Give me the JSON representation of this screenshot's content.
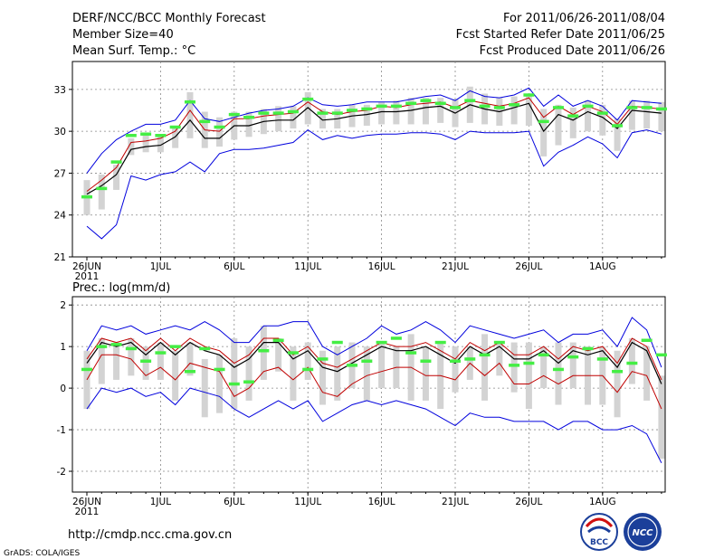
{
  "header": {
    "title": "DERF/NCC/BCC Monthly Forecast",
    "member_size": "Member Size=40",
    "variable": "Mean Surf. Temp.: °C",
    "for_range": "For 2011/06/26-2011/08/04",
    "started": "Fcst Started Refer Date 2011/06/25",
    "produced": "Fcst Produced Date 2011/06/26"
  },
  "footer": {
    "url": "http://cmdp.ncc.cma.gov.cn",
    "grads": "GrADS: COLA/IGES",
    "logo_bcc": "BCC",
    "logo_ncc": "NCC"
  },
  "colors": {
    "max_min": "#0000dd",
    "upper_quartile": "#c00000",
    "median": "#000000",
    "box": "#d3d3d3",
    "mean_marker": "#44ee44",
    "grid": "#888888"
  },
  "chart_data": [
    {
      "type": "line",
      "title": "Mean Surf. Temp.: °C",
      "x_labels": [
        "26JUN",
        "1JUL",
        "6JUL",
        "11JUL",
        "16JUL",
        "21JUL",
        "26JUL",
        "1AUG"
      ],
      "x_year": "2011",
      "ylim": [
        21,
        35
      ],
      "yticks": [
        21,
        24,
        27,
        30,
        33
      ],
      "grid": true,
      "days": 40,
      "series": [
        {
          "name": "max",
          "values": [
            27.0,
            28.4,
            29.4,
            30.0,
            30.5,
            30.5,
            30.8,
            32.2,
            30.9,
            30.7,
            31.0,
            31.3,
            31.5,
            31.6,
            31.8,
            32.4,
            31.9,
            31.8,
            31.9,
            32.1,
            32.1,
            32.1,
            32.3,
            32.5,
            32.6,
            32.2,
            32.9,
            32.5,
            32.4,
            32.6,
            33.1,
            31.8,
            32.6,
            31.8,
            32.2,
            31.8,
            30.8,
            32.2,
            32.1,
            32.0
          ]
        },
        {
          "name": "upper",
          "values": [
            25.7,
            26.5,
            27.4,
            29.2,
            29.3,
            29.5,
            30.0,
            31.5,
            30.1,
            30.0,
            30.9,
            30.9,
            31.1,
            31.2,
            31.3,
            32.1,
            31.4,
            31.2,
            31.4,
            31.5,
            31.8,
            31.7,
            31.9,
            32.0,
            32.1,
            31.7,
            32.2,
            32.0,
            31.8,
            32.0,
            32.4,
            31.0,
            31.8,
            31.2,
            31.8,
            31.4,
            30.5,
            31.8,
            31.7,
            31.6
          ]
        },
        {
          "name": "median",
          "values": [
            25.5,
            26.1,
            26.9,
            28.7,
            28.9,
            29.0,
            29.6,
            30.8,
            29.5,
            29.5,
            30.4,
            30.4,
            30.7,
            30.8,
            30.8,
            31.7,
            30.8,
            30.9,
            31.1,
            31.2,
            31.4,
            31.4,
            31.5,
            31.7,
            31.8,
            31.3,
            31.9,
            31.6,
            31.4,
            31.7,
            32.0,
            30.0,
            31.2,
            30.8,
            31.4,
            31.0,
            30.2,
            31.5,
            31.4,
            31.3
          ]
        },
        {
          "name": "min",
          "values": [
            23.2,
            22.3,
            23.3,
            26.8,
            26.5,
            26.9,
            27.1,
            27.8,
            27.1,
            28.4,
            28.7,
            28.7,
            28.8,
            29.0,
            29.2,
            30.1,
            29.4,
            29.7,
            29.5,
            29.7,
            29.8,
            29.8,
            29.9,
            29.9,
            29.8,
            29.4,
            30.0,
            29.9,
            29.9,
            29.9,
            30.0,
            27.5,
            28.5,
            29.0,
            29.6,
            29.1,
            28.1,
            29.9,
            30.1,
            29.8
          ]
        },
        {
          "name": "box_low",
          "values": [
            24.0,
            24.4,
            25.8,
            28.3,
            28.5,
            28.5,
            28.8,
            29.5,
            28.8,
            28.9,
            29.4,
            29.6,
            29.8,
            30.0,
            30.2,
            30.5,
            30.2,
            30.2,
            30.3,
            30.4,
            30.5,
            30.5,
            30.5,
            30.5,
            30.6,
            30.3,
            30.6,
            30.5,
            30.4,
            30.5,
            30.4,
            28.2,
            29.0,
            29.5,
            30.0,
            29.7,
            28.6,
            30.1,
            30.2,
            30.0
          ]
        },
        {
          "name": "box_high",
          "values": [
            26.5,
            26.9,
            27.6,
            29.5,
            29.8,
            29.8,
            30.4,
            32.8,
            31.4,
            31.0,
            31.4,
            31.4,
            31.6,
            31.8,
            31.8,
            32.8,
            31.6,
            31.6,
            31.9,
            31.9,
            32.1,
            32.2,
            32.4,
            32.4,
            32.4,
            32.3,
            33.2,
            32.7,
            32.4,
            32.5,
            32.7,
            31.6,
            31.9,
            31.7,
            32.2,
            31.9,
            30.9,
            32.2,
            32.2,
            32.1
          ]
        },
        {
          "name": "mean",
          "values": [
            25.3,
            25.9,
            27.8,
            29.7,
            29.8,
            29.7,
            30.3,
            32.1,
            30.7,
            30.3,
            31.2,
            31.0,
            31.3,
            31.3,
            31.4,
            32.3,
            31.3,
            31.3,
            31.5,
            31.6,
            31.8,
            31.8,
            32.0,
            32.2,
            32.0,
            31.7,
            32.2,
            31.8,
            31.7,
            31.9,
            32.6,
            30.7,
            31.7,
            31.1,
            31.8,
            31.3,
            30.4,
            31.7,
            31.7,
            31.6
          ]
        }
      ]
    },
    {
      "type": "line",
      "title": "Prec.: log(mm/d)",
      "x_labels": [
        "26JUN",
        "1JUL",
        "6JUL",
        "11JUL",
        "16JUL",
        "21JUL",
        "26JUL",
        "1AUG"
      ],
      "x_year": "2011",
      "ylim": [
        -2.5,
        2.2
      ],
      "yticks": [
        -2,
        -1,
        0,
        1,
        2
      ],
      "grid": true,
      "days": 40,
      "series": [
        {
          "name": "max",
          "values": [
            0.9,
            1.5,
            1.4,
            1.5,
            1.3,
            1.4,
            1.5,
            1.4,
            1.6,
            1.4,
            1.1,
            1.1,
            1.5,
            1.5,
            1.6,
            1.6,
            1.0,
            0.8,
            1.0,
            1.2,
            1.5,
            1.3,
            1.4,
            1.6,
            1.4,
            1.1,
            1.5,
            1.4,
            1.3,
            1.2,
            1.3,
            1.4,
            1.1,
            1.3,
            1.3,
            1.4,
            1.0,
            1.7,
            1.4,
            0.5
          ]
        },
        {
          "name": "upper",
          "values": [
            0.7,
            1.2,
            1.1,
            1.2,
            0.9,
            1.2,
            0.9,
            1.2,
            1.0,
            0.9,
            0.6,
            0.8,
            1.2,
            1.2,
            0.8,
            1.0,
            0.6,
            0.5,
            0.7,
            0.9,
            1.1,
            1.0,
            1.0,
            1.1,
            0.9,
            0.7,
            1.1,
            0.9,
            1.1,
            0.8,
            0.8,
            1.0,
            0.7,
            1.0,
            0.9,
            1.0,
            0.6,
            1.2,
            1.0,
            0.2
          ]
        },
        {
          "name": "median",
          "values": [
            0.6,
            1.1,
            1.0,
            1.1,
            0.8,
            1.1,
            0.8,
            1.1,
            0.9,
            0.8,
            0.5,
            0.7,
            1.1,
            1.1,
            0.7,
            0.9,
            0.5,
            0.4,
            0.6,
            0.8,
            1.0,
            0.9,
            0.9,
            1.0,
            0.8,
            0.6,
            1.0,
            0.8,
            1.0,
            0.7,
            0.7,
            0.9,
            0.6,
            0.9,
            0.8,
            0.9,
            0.5,
            1.1,
            0.9,
            0.1
          ]
        },
        {
          "name": "mid_low",
          "values": [
            0.2,
            0.8,
            0.8,
            0.7,
            0.3,
            0.5,
            0.2,
            0.6,
            0.5,
            0.4,
            -0.2,
            0.0,
            0.4,
            0.5,
            0.2,
            0.5,
            -0.1,
            -0.2,
            0.1,
            0.3,
            0.4,
            0.5,
            0.5,
            0.3,
            0.3,
            0.2,
            0.6,
            0.3,
            0.6,
            0.1,
            0.1,
            0.3,
            0.1,
            0.3,
            0.3,
            0.3,
            -0.1,
            0.4,
            0.3,
            -0.5
          ]
        },
        {
          "name": "min",
          "values": [
            -0.5,
            0.0,
            -0.1,
            0.0,
            -0.2,
            -0.1,
            -0.4,
            0.0,
            -0.1,
            -0.2,
            -0.5,
            -0.7,
            -0.5,
            -0.3,
            -0.5,
            -0.3,
            -0.8,
            -0.6,
            -0.4,
            -0.3,
            -0.4,
            -0.3,
            -0.4,
            -0.5,
            -0.7,
            -0.9,
            -0.6,
            -0.7,
            -0.7,
            -0.8,
            -0.8,
            -0.8,
            -1.0,
            -0.8,
            -0.8,
            -1.0,
            -1.0,
            -0.9,
            -1.1,
            -1.8
          ]
        },
        {
          "name": "box_low",
          "values": [
            -0.5,
            0.1,
            0.2,
            0.3,
            0.2,
            0.2,
            -0.3,
            0.3,
            -0.7,
            -0.6,
            -0.5,
            -0.3,
            0.2,
            0.4,
            -0.3,
            0.2,
            -0.4,
            -0.3,
            0.0,
            -0.3,
            0.0,
            0.0,
            -0.3,
            -0.3,
            -0.5,
            -0.1,
            0.2,
            -0.3,
            0.3,
            -0.1,
            -0.5,
            0.0,
            -0.4,
            0.0,
            -0.4,
            -0.4,
            -0.7,
            0.1,
            -0.3,
            -1.7
          ]
        },
        {
          "name": "box_high",
          "values": [
            0.9,
            1.2,
            1.1,
            1.2,
            1.0,
            1.1,
            0.9,
            1.1,
            0.7,
            0.8,
            1.2,
            1.0,
            1.5,
            1.2,
            1.0,
            1.1,
            0.9,
            1.0,
            1.1,
            1.0,
            1.1,
            1.0,
            1.3,
            1.0,
            1.1,
            1.0,
            1.0,
            1.3,
            1.1,
            1.1,
            1.1,
            1.0,
            1.1,
            1.1,
            1.0,
            1.0,
            0.9,
            1.2,
            1.0,
            0.3
          ]
        },
        {
          "name": "mean",
          "values": [
            0.45,
            1.0,
            1.05,
            0.95,
            0.65,
            0.85,
            1.0,
            0.4,
            0.95,
            0.45,
            0.1,
            0.15,
            0.9,
            1.15,
            0.85,
            0.45,
            0.7,
            1.1,
            0.55,
            0.65,
            1.1,
            1.2,
            0.85,
            0.65,
            1.1,
            0.65,
            0.7,
            0.8,
            1.1,
            0.55,
            0.6,
            0.8,
            0.45,
            0.75,
            0.95,
            0.7,
            0.4,
            0.6,
            1.15,
            0.8
          ]
        }
      ]
    }
  ]
}
